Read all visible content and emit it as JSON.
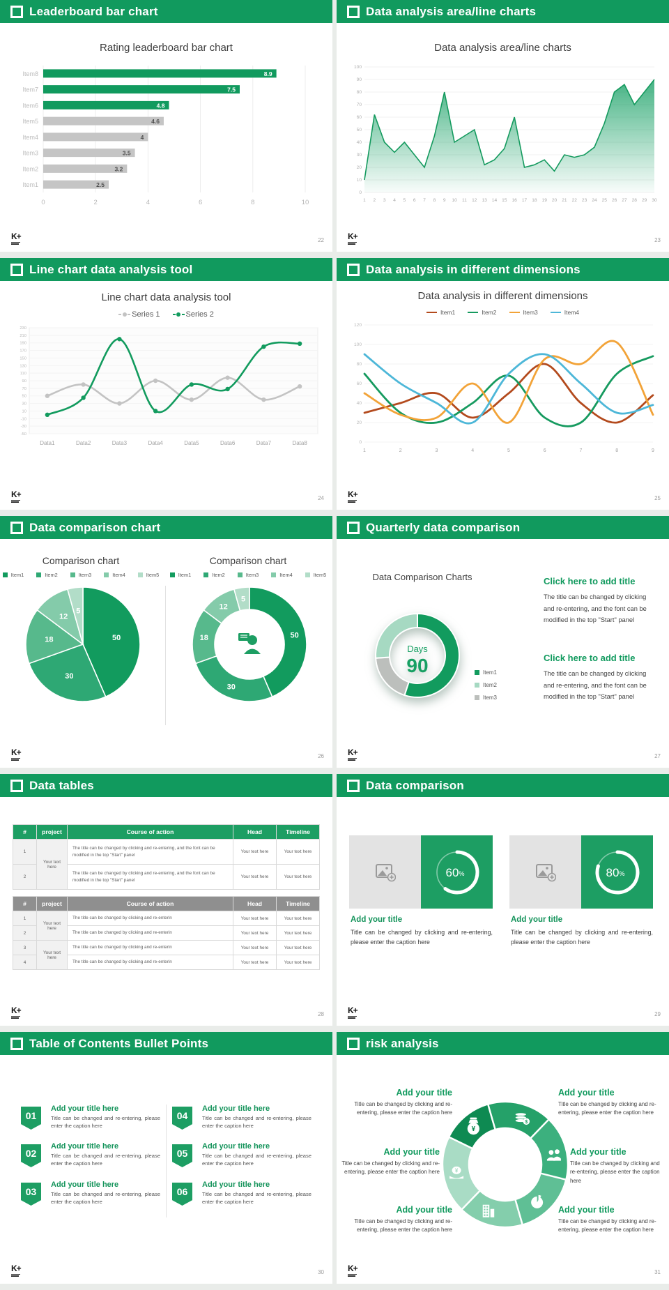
{
  "brand": {
    "logo": "K+"
  },
  "colors": {
    "green": "#119a5e",
    "green_table": "#1d9e63",
    "bar_gray": "#c5c5c5",
    "title_text": "#3d3d3d",
    "tick_text": "#adadad",
    "page_bg": "#e9ece9"
  },
  "slides": [
    {
      "header": "Leaderboard bar chart",
      "page_number": "22",
      "chart_title": "Rating leaderboard bar chart",
      "chart_data": {
        "type": "bar",
        "orientation": "horizontal",
        "title": "Rating leaderboard bar chart",
        "categories": [
          "Item1",
          "Item2",
          "Item3",
          "Item4",
          "Item5",
          "Item6",
          "Item7",
          "Item8"
        ],
        "values": [
          2.5,
          3.2,
          3.5,
          4,
          4.6,
          4.8,
          7.5,
          8.9
        ],
        "bar_colors": [
          "gray",
          "gray",
          "gray",
          "gray",
          "gray",
          "green",
          "green",
          "green"
        ],
        "xticks": [
          0,
          2,
          4,
          6,
          8,
          10
        ],
        "xlim": [
          0,
          10
        ]
      }
    },
    {
      "header": "Data analysis area/line charts",
      "page_number": "23",
      "chart_title": "Data analysis area/line charts",
      "chart_data": {
        "type": "area",
        "title": "Data analysis area/line charts",
        "x": [
          1,
          2,
          3,
          4,
          5,
          6,
          7,
          8,
          9,
          10,
          11,
          12,
          13,
          14,
          15,
          16,
          17,
          18,
          19,
          20,
          21,
          22,
          23,
          24,
          25,
          26,
          27,
          28,
          29,
          30
        ],
        "values": [
          10,
          62,
          40,
          32,
          40,
          30,
          20,
          45,
          80,
          40,
          45,
          50,
          22,
          26,
          35,
          60,
          20,
          22,
          26,
          17,
          30,
          28,
          30,
          36,
          55,
          80,
          86,
          70,
          80,
          90
        ],
        "yticks": [
          0,
          10,
          20,
          30,
          40,
          50,
          60,
          70,
          80,
          90,
          100
        ],
        "ylim": [
          0,
          100
        ],
        "line_color": "#149a5e"
      }
    },
    {
      "header": "Line chart data analysis tool",
      "page_number": "24",
      "chart_title": "Line chart data analysis tool",
      "chart_data": {
        "type": "line",
        "title": "Line chart data analysis tool",
        "categories": [
          "Data1",
          "Data2",
          "Data3",
          "Data4",
          "Data5",
          "Data6",
          "Data7",
          "Data8"
        ],
        "series": [
          {
            "name": "Series 1",
            "color": "#c3c3c3",
            "values": [
              50,
              80,
              30,
              90,
              40,
              98,
              40,
              75
            ]
          },
          {
            "name": "Series 2",
            "color": "#129b5e",
            "values": [
              0,
              45,
              200,
              10,
              80,
              68,
              180,
              188
            ]
          }
        ],
        "ylim": [
          -50,
          230
        ],
        "ytick_step": 20,
        "legend_position": "top"
      }
    },
    {
      "header": "Data analysis in different dimensions",
      "page_number": "25",
      "chart_title": "Data analysis in different dimensions",
      "chart_data": {
        "type": "line",
        "title": "Data analysis in different dimensions",
        "x": [
          1,
          2,
          3,
          4,
          5,
          6,
          7,
          8,
          9
        ],
        "series": [
          {
            "name": "Item1",
            "color": "#b34a1d",
            "values": [
              30,
              40,
              50,
              25,
              50,
              80,
              40,
              20,
              48
            ]
          },
          {
            "name": "Item2",
            "color": "#169a5f",
            "values": [
              70,
              30,
              20,
              40,
              68,
              25,
              20,
              70,
              88
            ]
          },
          {
            "name": "Item3",
            "color": "#f2a338",
            "values": [
              50,
              28,
              25,
              60,
              20,
              85,
              80,
              102,
              28
            ]
          },
          {
            "name": "Item4",
            "color": "#4db7d8",
            "values": [
              90,
              60,
              40,
              20,
              70,
              90,
              60,
              30,
              38
            ]
          }
        ],
        "ylim": [
          0,
          120
        ],
        "ytick_step": 20,
        "legend_position": "top"
      }
    },
    {
      "header": "Data comparison chart",
      "page_number": "26",
      "panel1_title": "Comparison chart",
      "panel2_title": "Comparison chart",
      "chart_data": {
        "type": "pie",
        "labels": [
          "Item1",
          "Item2",
          "Item3",
          "Item4",
          "Item5"
        ],
        "values": [
          50,
          30,
          18,
          12,
          5
        ],
        "colors": [
          "#129b5e",
          "#2ea874",
          "#57b98c",
          "#84cbaa",
          "#b2ddc8"
        ],
        "variants": [
          "pie",
          "donut-with-person-icon"
        ]
      }
    },
    {
      "header": "Quarterly data comparison",
      "page_number": "27",
      "left": {
        "title": "Data Comparison Charts",
        "center_label": "Days",
        "center_value": "90",
        "legend": [
          {
            "label": "Item1",
            "color": "#129b5e"
          },
          {
            "label": "Item2",
            "color": "#a6d9c2"
          },
          {
            "label": "Item3",
            "color": "#bcbfbc"
          }
        ],
        "chart_data": {
          "type": "donut",
          "segments": [
            {
              "label": "Item1",
              "value": 55,
              "color": "#129b5e"
            },
            {
              "label": "Item3",
              "value": 19,
              "color": "#bcbfbc"
            },
            {
              "label": "Item2",
              "value": 26,
              "color": "#a6d9c2"
            }
          ]
        }
      },
      "right_blocks": [
        {
          "title": "Click here to add title",
          "body": "The title can be changed by clicking and re-entering, and the font can be modified in the top \"Start\" panel"
        },
        {
          "title": "Click here to add title",
          "body": "The title can be changed by clicking and re-entering, and the font can be modified in the top \"Start\" panel"
        }
      ]
    },
    {
      "header": "Data tables",
      "page_number": "28",
      "table1": {
        "columns": [
          "#",
          "project",
          "Course of action",
          "Head",
          "Timeline"
        ],
        "project_label": "Your text here",
        "rows": [
          {
            "num": "1",
            "course": "The title can be changed by clicking and re-entering, and the font can be modified in the top \"Start\" panel",
            "head": "Your text here",
            "timeline": "Your text here"
          },
          {
            "num": "2",
            "course": "The title can be changed by clicking and re-entering, and the font can be modified in the top \"Start\" panel",
            "head": "Your text here",
            "timeline": "Your text here"
          }
        ]
      },
      "table2": {
        "columns": [
          "#",
          "project",
          "Course of action",
          "Head",
          "Timeline"
        ],
        "project_labels": [
          "Your text here",
          "Your text here"
        ],
        "rows": [
          {
            "num": "1",
            "course": "The title can be changed by clicking and re-enterin",
            "head": "Your text here",
            "timeline": "Your text here"
          },
          {
            "num": "2",
            "course": "The title can be changed by clicking and re-enterin",
            "head": "Your text here",
            "timeline": "Your text here"
          },
          {
            "num": "3",
            "course": "The title can be changed by clicking and re-enterin",
            "head": "Your text here",
            "timeline": "Your text here"
          },
          {
            "num": "4",
            "course": "The title can be changed by clicking and re-enterin",
            "head": "Your text here",
            "timeline": "Your text here"
          }
        ]
      }
    },
    {
      "header": "Data comparison",
      "page_number": "29",
      "cards": [
        {
          "percent": 60,
          "percent_suffix": "%",
          "title": "Add your title",
          "caption": "Title can be changed by clicking and re-entering, please enter the caption here"
        },
        {
          "percent": 80,
          "percent_suffix": "%",
          "title": "Add your title",
          "caption": "Title can be changed by clicking and re-entering, please enter the caption here"
        }
      ]
    },
    {
      "header": "Table of Contents Bullet Points",
      "page_number": "30",
      "items": [
        {
          "num": "01",
          "title": "Add your title here",
          "caption": "Title can be changed and re-entering, please enter the caption here"
        },
        {
          "num": "02",
          "title": "Add your title here",
          "caption": "Title can be changed and re-entering, please enter the caption here"
        },
        {
          "num": "03",
          "title": "Add your title here",
          "caption": "Title can be changed and re-entering, please enter the caption here"
        },
        {
          "num": "04",
          "title": "Add your title here",
          "caption": "Title can be changed and re-entering, please enter the caption here"
        },
        {
          "num": "05",
          "title": "Add your title here",
          "caption": "Title can be changed and re-entering, please enter the caption here"
        },
        {
          "num": "06",
          "title": "Add your title here",
          "caption": "Title can be changed and re-entering, please enter the caption here"
        }
      ]
    },
    {
      "header": "risk analysis",
      "page_number": "31",
      "wheel_icons": [
        "money-bag-icon",
        "coins-icon",
        "people-icon",
        "pie-chart-icon",
        "building-icon",
        "money-hand-icon"
      ],
      "wheel_colors": [
        "#0e8a52",
        "#25a169",
        "#3cb07e",
        "#5fbf95",
        "#84ceac",
        "#a9dcc5"
      ],
      "blocks": [
        {
          "title": "Add your title",
          "caption": "Title can be changed by clicking and re-entering, please enter the caption here"
        },
        {
          "title": "Add your title",
          "caption": "Title can be changed by clicking and re-entering, please enter the caption here"
        },
        {
          "title": "Add your title",
          "caption": "Title can be changed by clicking and re-entering, please enter the caption here"
        },
        {
          "title": "Add your title",
          "caption": "Title can be changed by clicking and re-entering, please enter the caption here"
        },
        {
          "title": "Add your title",
          "caption": "Title can be changed by clicking and re-entering, please enter the caption here"
        },
        {
          "title": "Add your title",
          "caption": "Title can be changed by clicking and re-entering, please enter the caption here"
        }
      ]
    }
  ]
}
